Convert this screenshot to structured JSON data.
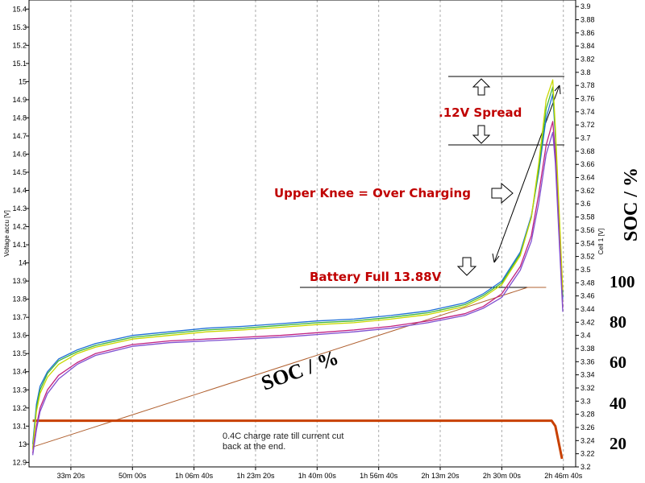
{
  "chart_data": {
    "type": "line",
    "title": "",
    "xlabel": "",
    "ylabel_left": "Voltage accu [V]",
    "ylabel_right": "Cell 1 [V]",
    "x_unit": "minutes",
    "xlim": [
      22,
      170
    ],
    "ylim_left": [
      12.875,
      15.45
    ],
    "ylim_right": [
      3.2,
      3.91
    ],
    "x_ticks": [
      {
        "value": 33.33,
        "label": "33m 20s"
      },
      {
        "value": 50.0,
        "label": "50m 00s"
      },
      {
        "value": 66.67,
        "label": "1h 06m 40s"
      },
      {
        "value": 83.33,
        "label": "1h 23m 20s"
      },
      {
        "value": 100.0,
        "label": "1h 40m 00s"
      },
      {
        "value": 116.67,
        "label": "1h 56m 40s"
      },
      {
        "value": 133.33,
        "label": "2h 13m 20s"
      },
      {
        "value": 150.0,
        "label": "2h 30m 00s"
      },
      {
        "value": 166.67,
        "label": "2h 46m 40s"
      }
    ],
    "y_ticks_left": [
      "12.9",
      "13",
      "13.1",
      "13.2",
      "13.3",
      "13.4",
      "13.5",
      "13.6",
      "13.7",
      "13.8",
      "13.9",
      "14",
      "14.1",
      "14.2",
      "14.3",
      "14.4",
      "14.5",
      "14.6",
      "14.7",
      "14.8",
      "14.9",
      "15",
      "15.1",
      "15.2",
      "15.3",
      "15.4"
    ],
    "y_ticks_right": [
      "3.2",
      "3.22",
      "3.24",
      "3.26",
      "3.28",
      "3.3",
      "3.32",
      "3.34",
      "3.36",
      "3.38",
      "3.4",
      "3.42",
      "3.44",
      "3.46",
      "3.48",
      "3.5",
      "3.52",
      "3.54",
      "3.56",
      "3.58",
      "3.6",
      "3.62",
      "3.64",
      "3.66",
      "3.68",
      "3.7",
      "3.72",
      "3.74",
      "3.76",
      "3.78",
      "3.8",
      "3.82",
      "3.84",
      "3.86",
      "3.88",
      "3.9"
    ],
    "soc_axis": {
      "label": "SOC / %",
      "ticks": [
        "100",
        "80",
        "60",
        "40",
        "20"
      ]
    },
    "series": [
      {
        "color": "#1f6fd6",
        "x": [
          23,
          24,
          25,
          27,
          30,
          35,
          40,
          50,
          60,
          70,
          80,
          90,
          100,
          110,
          120,
          130,
          140,
          145,
          150,
          155,
          158,
          160,
          162,
          163.8,
          164.5,
          166.5
        ],
        "y": [
          13.0,
          13.22,
          13.32,
          13.4,
          13.47,
          13.52,
          13.555,
          13.6,
          13.62,
          13.64,
          13.65,
          13.665,
          13.68,
          13.69,
          13.71,
          13.735,
          13.78,
          13.83,
          13.9,
          14.06,
          14.26,
          14.5,
          14.8,
          14.93,
          14.7,
          13.8
        ]
      },
      {
        "color": "#3cb43c",
        "x": [
          23,
          24,
          25,
          27,
          30,
          35,
          40,
          50,
          60,
          70,
          80,
          90,
          100,
          110,
          120,
          130,
          140,
          145,
          150,
          155,
          158,
          160,
          162,
          163.8,
          164.5,
          166.5
        ],
        "y": [
          12.98,
          13.2,
          13.3,
          13.39,
          13.46,
          13.51,
          13.545,
          13.59,
          13.61,
          13.63,
          13.64,
          13.655,
          13.67,
          13.68,
          13.7,
          13.725,
          13.77,
          13.82,
          13.89,
          14.05,
          14.25,
          14.52,
          14.85,
          14.97,
          14.72,
          13.82
        ]
      },
      {
        "color": "#c8d800",
        "x": [
          23,
          24,
          25,
          27,
          30,
          35,
          40,
          50,
          60,
          70,
          80,
          90,
          100,
          110,
          120,
          130,
          140,
          145,
          150,
          155,
          158,
          160,
          162,
          163.8,
          164.5,
          166.5
        ],
        "y": [
          12.97,
          13.18,
          13.28,
          13.37,
          13.44,
          13.5,
          13.535,
          13.58,
          13.6,
          13.62,
          13.63,
          13.645,
          13.66,
          13.67,
          13.69,
          13.715,
          13.76,
          13.81,
          13.88,
          14.04,
          14.25,
          14.55,
          14.9,
          15.01,
          14.75,
          13.85
        ]
      },
      {
        "color": "#c02080",
        "x": [
          23,
          24,
          25,
          27,
          30,
          35,
          40,
          50,
          60,
          70,
          80,
          90,
          100,
          110,
          120,
          130,
          140,
          145,
          150,
          155,
          158,
          160,
          162,
          163.8,
          164.5,
          166.5
        ],
        "y": [
          12.95,
          13.1,
          13.2,
          13.3,
          13.38,
          13.45,
          13.5,
          13.55,
          13.57,
          13.58,
          13.59,
          13.6,
          13.615,
          13.63,
          13.65,
          13.68,
          13.72,
          13.76,
          13.83,
          13.98,
          14.15,
          14.38,
          14.65,
          14.78,
          14.6,
          13.75
        ]
      },
      {
        "color": "#8050d0",
        "x": [
          23,
          24,
          25,
          27,
          30,
          35,
          40,
          50,
          60,
          70,
          80,
          90,
          100,
          110,
          120,
          130,
          140,
          145,
          150,
          155,
          158,
          160,
          162,
          163.8,
          164.5,
          166.5
        ],
        "y": [
          12.94,
          13.08,
          13.18,
          13.28,
          13.36,
          13.44,
          13.49,
          13.54,
          13.56,
          13.57,
          13.58,
          13.59,
          13.605,
          13.62,
          13.64,
          13.67,
          13.71,
          13.75,
          13.81,
          13.96,
          14.12,
          14.33,
          14.6,
          14.72,
          14.55,
          13.73
        ]
      }
    ],
    "current_curve": {
      "color": "#c84000",
      "x": [
        23,
        163.5,
        164.5,
        166.3
      ],
      "y": [
        13.13,
        13.13,
        13.1,
        12.92
      ]
    },
    "soc_curve": {
      "color": "#b06030",
      "x": [
        23,
        157,
        162
      ],
      "y": [
        12.985,
        13.865,
        13.865
      ]
    }
  },
  "annotations": {
    "spread": ".12V Spread",
    "upper_knee": "Upper Knee = Over Charging",
    "battery_full": "Battery Full 13.88V",
    "soc_diag": "SOC / %",
    "note_line1": "0.4C charge rate till current cut",
    "note_line2": "back at the end."
  },
  "colors": {
    "annotation_red": "#c00000",
    "grid": "#aaaaaa"
  }
}
